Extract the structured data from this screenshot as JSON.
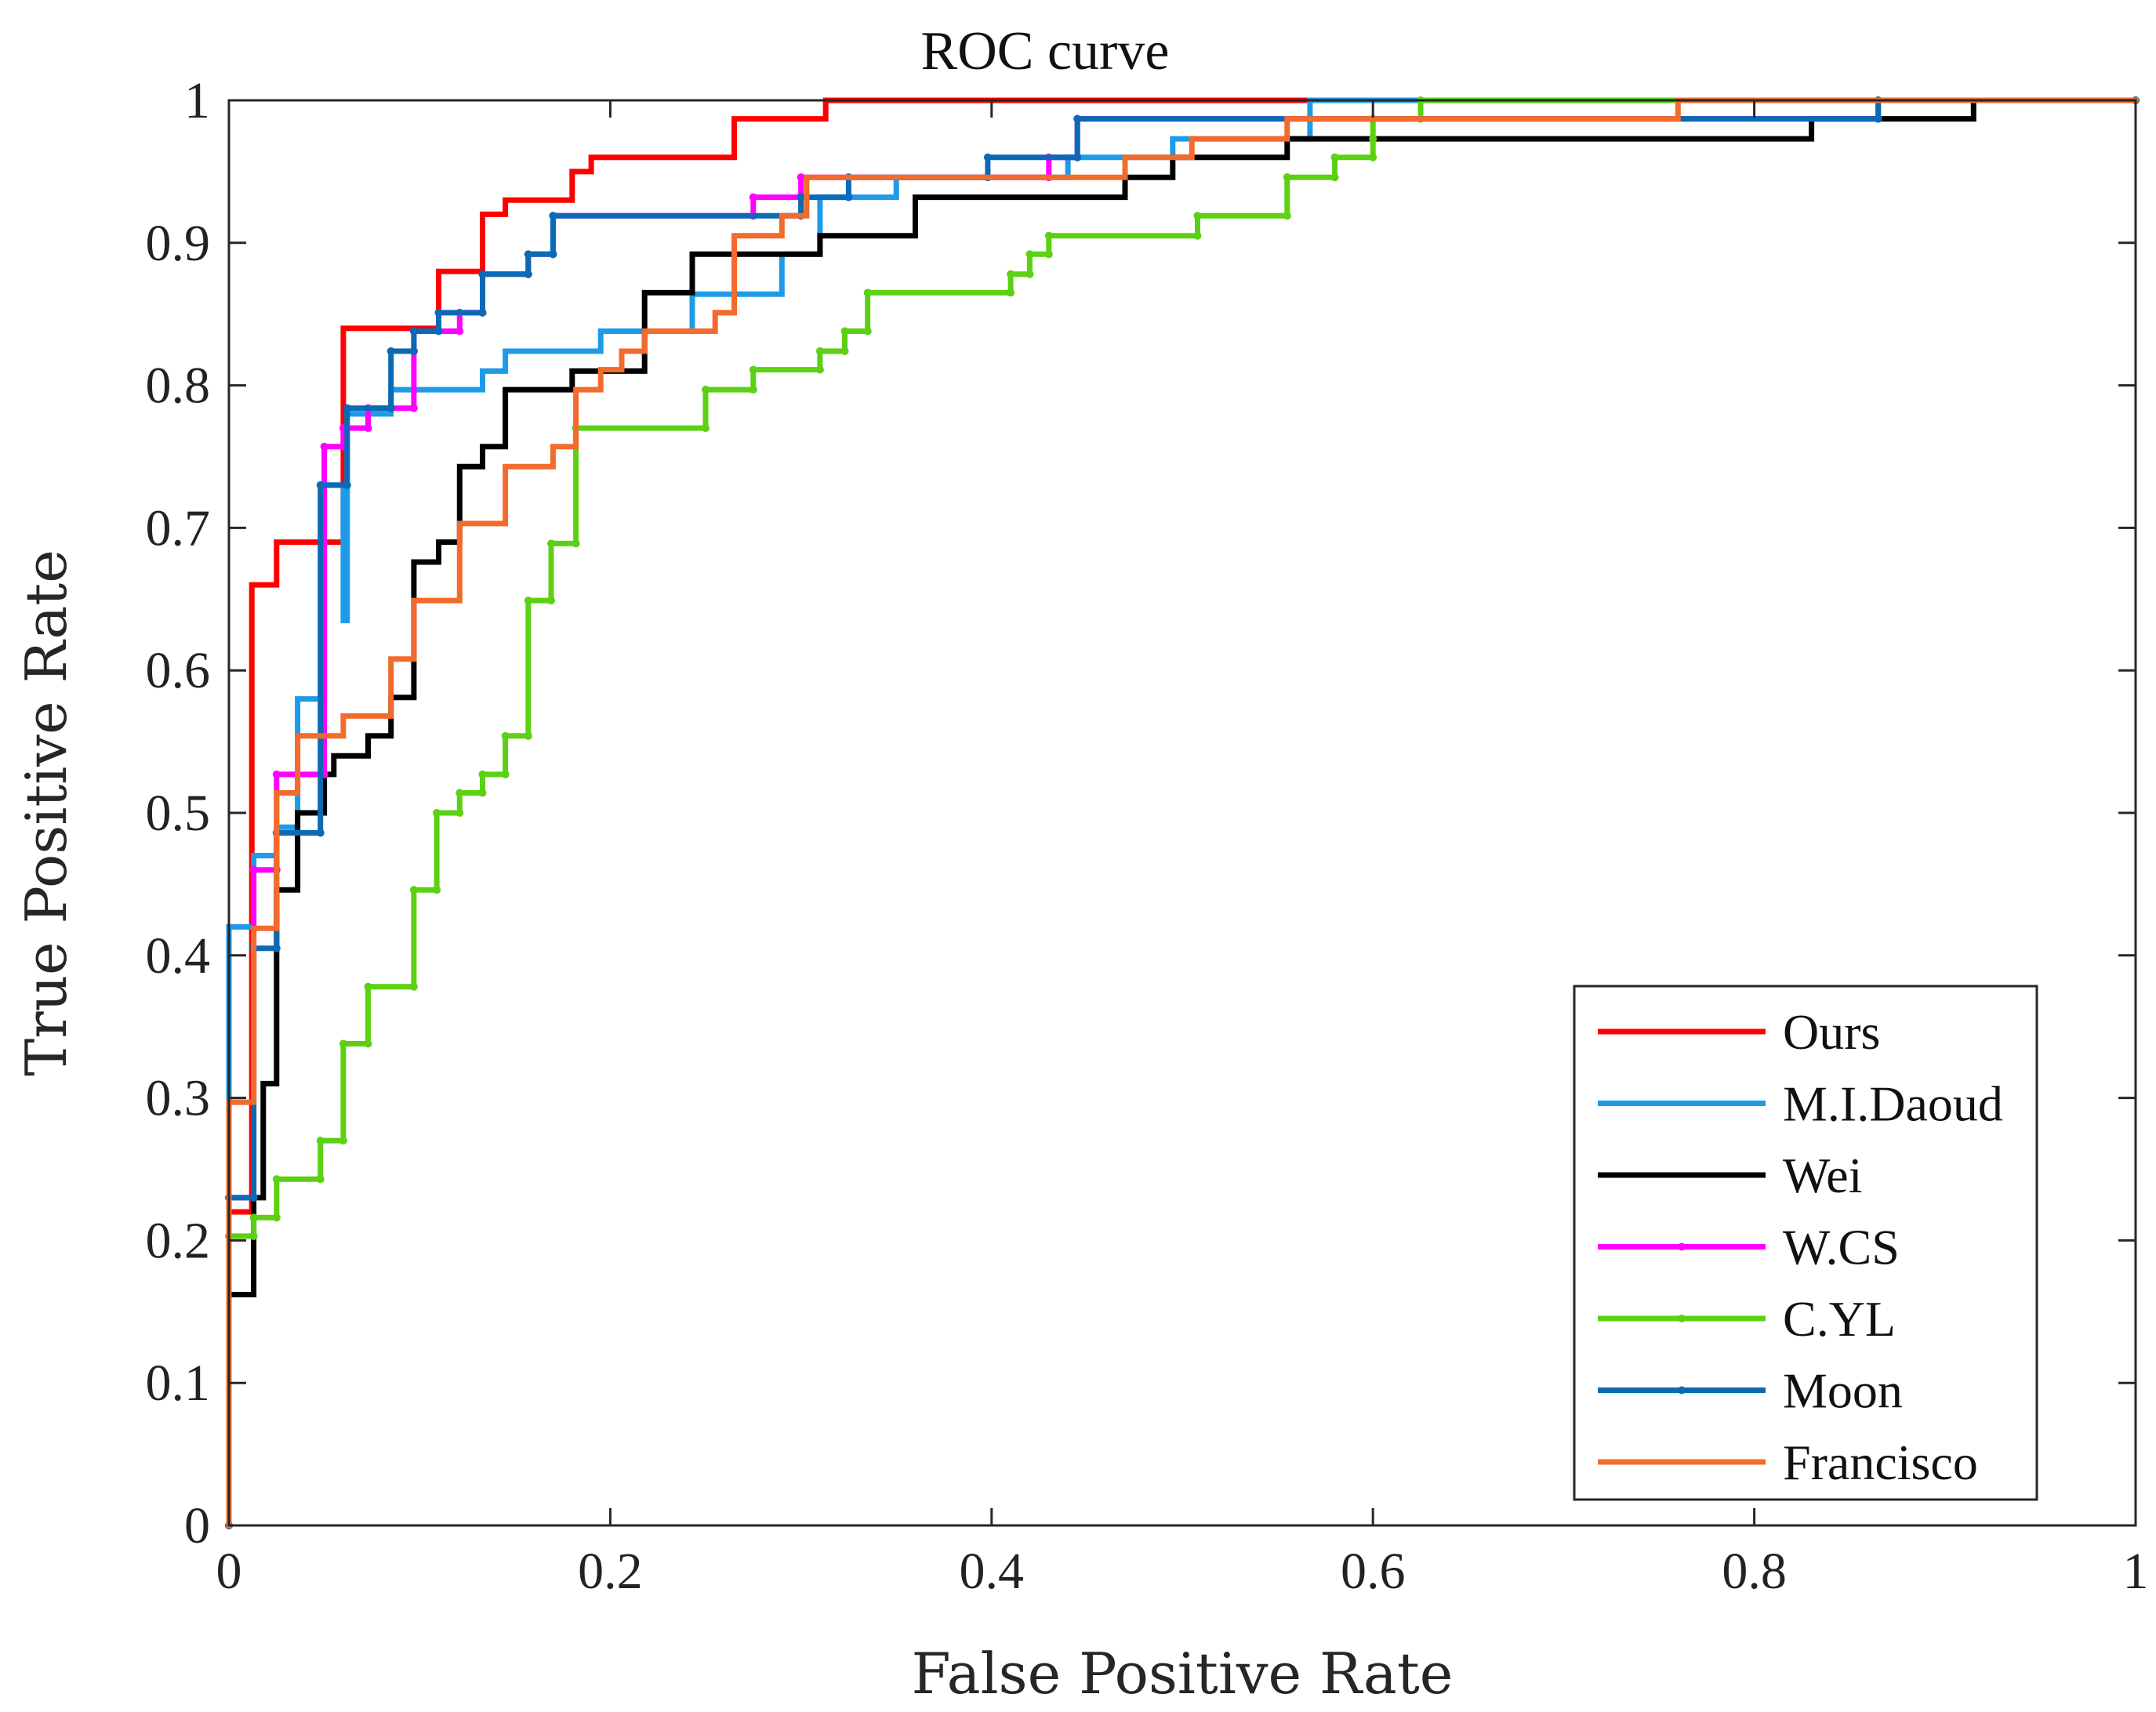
{
  "chart_data": {
    "type": "line",
    "title": "ROC curve",
    "xlabel": "False Positive Rate",
    "ylabel": "True Positive Rate",
    "xlim": [
      0,
      1
    ],
    "ylim": [
      0,
      1
    ],
    "xticks": [
      "0",
      "0.2",
      "0.4",
      "0.6",
      "0.8",
      "1"
    ],
    "yticks": [
      "0",
      "0.1",
      "0.2",
      "0.3",
      "0.4",
      "0.5",
      "0.6",
      "0.7",
      "0.8",
      "0.9",
      "1"
    ],
    "grid": false,
    "legend_position": "bottom-right",
    "series": [
      {
        "name": "Ours",
        "color": "#ff0000",
        "points": [
          [
            0,
            0
          ],
          [
            0,
            0.22
          ],
          [
            0.012,
            0.22
          ],
          [
            0.012,
            0.66
          ],
          [
            0.025,
            0.66
          ],
          [
            0.025,
            0.69
          ],
          [
            0.06,
            0.69
          ],
          [
            0.06,
            0.84
          ],
          [
            0.11,
            0.84
          ],
          [
            0.11,
            0.88
          ],
          [
            0.133,
            0.88
          ],
          [
            0.133,
            0.92
          ],
          [
            0.145,
            0.92
          ],
          [
            0.145,
            0.93
          ],
          [
            0.18,
            0.93
          ],
          [
            0.18,
            0.95
          ],
          [
            0.19,
            0.95
          ],
          [
            0.19,
            0.96
          ],
          [
            0.265,
            0.96
          ],
          [
            0.265,
            0.987
          ],
          [
            0.313,
            0.987
          ],
          [
            0.313,
            1
          ],
          [
            1,
            1
          ]
        ]
      },
      {
        "name": "M.I.Daoud",
        "color": "#1e9be8",
        "points": [
          [
            0,
            0
          ],
          [
            0,
            0.3
          ],
          [
            0,
            0.42
          ],
          [
            0.013,
            0.42
          ],
          [
            0.013,
            0.47
          ],
          [
            0.025,
            0.47
          ],
          [
            0.025,
            0.49
          ],
          [
            0.036,
            0.49
          ],
          [
            0.036,
            0.58
          ],
          [
            0.05,
            0.58
          ],
          [
            0.05,
            0.73
          ],
          [
            0.06,
            0.73
          ],
          [
            0.06,
            0.635
          ],
          [
            0.062,
            0.635
          ],
          [
            0.062,
            0.78
          ],
          [
            0.085,
            0.78
          ],
          [
            0.085,
            0.797
          ],
          [
            0.133,
            0.797
          ],
          [
            0.133,
            0.81
          ],
          [
            0.145,
            0.81
          ],
          [
            0.145,
            0.824
          ],
          [
            0.195,
            0.824
          ],
          [
            0.195,
            0.838
          ],
          [
            0.243,
            0.838
          ],
          [
            0.243,
            0.864
          ],
          [
            0.29,
            0.864
          ],
          [
            0.29,
            0.892
          ],
          [
            0.31,
            0.892
          ],
          [
            0.31,
            0.932
          ],
          [
            0.35,
            0.932
          ],
          [
            0.35,
            0.946
          ],
          [
            0.44,
            0.946
          ],
          [
            0.44,
            0.96
          ],
          [
            0.495,
            0.96
          ],
          [
            0.495,
            0.973
          ],
          [
            0.567,
            0.973
          ],
          [
            0.567,
            1
          ],
          [
            1,
            1
          ]
        ]
      },
      {
        "name": "Wei",
        "color": "#000000",
        "points": [
          [
            0,
            0
          ],
          [
            0,
            0.162
          ],
          [
            0.013,
            0.162
          ],
          [
            0.013,
            0.23
          ],
          [
            0.018,
            0.23
          ],
          [
            0.018,
            0.31
          ],
          [
            0.025,
            0.31
          ],
          [
            0.025,
            0.446
          ],
          [
            0.036,
            0.446
          ],
          [
            0.036,
            0.5
          ],
          [
            0.05,
            0.5
          ],
          [
            0.05,
            0.527
          ],
          [
            0.055,
            0.527
          ],
          [
            0.055,
            0.54
          ],
          [
            0.073,
            0.54
          ],
          [
            0.073,
            0.554
          ],
          [
            0.085,
            0.554
          ],
          [
            0.085,
            0.581
          ],
          [
            0.097,
            0.581
          ],
          [
            0.097,
            0.676
          ],
          [
            0.11,
            0.676
          ],
          [
            0.11,
            0.69
          ],
          [
            0.121,
            0.69
          ],
          [
            0.121,
            0.743
          ],
          [
            0.133,
            0.743
          ],
          [
            0.133,
            0.757
          ],
          [
            0.145,
            0.757
          ],
          [
            0.145,
            0.797
          ],
          [
            0.18,
            0.797
          ],
          [
            0.18,
            0.81
          ],
          [
            0.218,
            0.81
          ],
          [
            0.218,
            0.865
          ],
          [
            0.243,
            0.865
          ],
          [
            0.243,
            0.892
          ],
          [
            0.31,
            0.892
          ],
          [
            0.31,
            0.905
          ],
          [
            0.36,
            0.905
          ],
          [
            0.36,
            0.932
          ],
          [
            0.47,
            0.932
          ],
          [
            0.47,
            0.946
          ],
          [
            0.495,
            0.946
          ],
          [
            0.495,
            0.96
          ],
          [
            0.555,
            0.96
          ],
          [
            0.555,
            0.973
          ],
          [
            0.83,
            0.973
          ],
          [
            0.83,
            0.987
          ],
          [
            0.915,
            0.987
          ],
          [
            0.915,
            1
          ],
          [
            1,
            1
          ]
        ]
      },
      {
        "name": "W.CS",
        "color": "#ff00ff",
        "points": [
          [
            0,
            0
          ],
          [
            0,
            0.23
          ],
          [
            0.013,
            0.23
          ],
          [
            0.013,
            0.46
          ],
          [
            0.025,
            0.46
          ],
          [
            0.025,
            0.527
          ],
          [
            0.05,
            0.527
          ],
          [
            0.05,
            0.757
          ],
          [
            0.06,
            0.757
          ],
          [
            0.06,
            0.77
          ],
          [
            0.073,
            0.77
          ],
          [
            0.073,
            0.784
          ],
          [
            0.097,
            0.784
          ],
          [
            0.097,
            0.838
          ],
          [
            0.121,
            0.838
          ],
          [
            0.121,
            0.851
          ],
          [
            0.133,
            0.851
          ],
          [
            0.133,
            0.878
          ],
          [
            0.157,
            0.878
          ],
          [
            0.157,
            0.892
          ],
          [
            0.17,
            0.892
          ],
          [
            0.17,
            0.919
          ],
          [
            0.275,
            0.919
          ],
          [
            0.275,
            0.932
          ],
          [
            0.3,
            0.932
          ],
          [
            0.3,
            0.946
          ],
          [
            0.43,
            0.946
          ],
          [
            0.43,
            0.96
          ],
          [
            0.445,
            0.96
          ],
          [
            0.445,
            0.987
          ],
          [
            0.865,
            0.987
          ],
          [
            0.865,
            1
          ],
          [
            1,
            1
          ]
        ]
      },
      {
        "name": "C.YL",
        "color": "#5cd113",
        "points": [
          [
            0,
            0
          ],
          [
            0,
            0.203
          ],
          [
            0.013,
            0.203
          ],
          [
            0.013,
            0.216
          ],
          [
            0.025,
            0.216
          ],
          [
            0.025,
            0.243
          ],
          [
            0.048,
            0.243
          ],
          [
            0.048,
            0.27
          ],
          [
            0.06,
            0.27
          ],
          [
            0.06,
            0.338
          ],
          [
            0.073,
            0.338
          ],
          [
            0.073,
            0.378
          ],
          [
            0.097,
            0.378
          ],
          [
            0.097,
            0.446
          ],
          [
            0.109,
            0.446
          ],
          [
            0.109,
            0.5
          ],
          [
            0.121,
            0.5
          ],
          [
            0.121,
            0.514
          ],
          [
            0.133,
            0.514
          ],
          [
            0.133,
            0.527
          ],
          [
            0.145,
            0.527
          ],
          [
            0.145,
            0.554
          ],
          [
            0.157,
            0.554
          ],
          [
            0.157,
            0.649
          ],
          [
            0.169,
            0.649
          ],
          [
            0.169,
            0.689
          ],
          [
            0.182,
            0.689
          ],
          [
            0.182,
            0.77
          ],
          [
            0.25,
            0.77
          ],
          [
            0.25,
            0.797
          ],
          [
            0.275,
            0.797
          ],
          [
            0.275,
            0.811
          ],
          [
            0.31,
            0.811
          ],
          [
            0.31,
            0.824
          ],
          [
            0.323,
            0.824
          ],
          [
            0.323,
            0.838
          ],
          [
            0.335,
            0.838
          ],
          [
            0.335,
            0.865
          ],
          [
            0.41,
            0.865
          ],
          [
            0.41,
            0.878
          ],
          [
            0.42,
            0.878
          ],
          [
            0.42,
            0.892
          ],
          [
            0.43,
            0.892
          ],
          [
            0.43,
            0.905
          ],
          [
            0.508,
            0.905
          ],
          [
            0.508,
            0.919
          ],
          [
            0.555,
            0.919
          ],
          [
            0.555,
            0.946
          ],
          [
            0.58,
            0.946
          ],
          [
            0.58,
            0.96
          ],
          [
            0.6,
            0.96
          ],
          [
            0.6,
            0.973
          ],
          [
            0.6,
            0.987
          ],
          [
            0.625,
            0.987
          ],
          [
            0.625,
            1
          ],
          [
            1,
            1
          ]
        ]
      },
      {
        "name": "Moon",
        "color": "#0a6ab5",
        "points": [
          [
            0,
            0
          ],
          [
            0,
            0.23
          ],
          [
            0.013,
            0.23
          ],
          [
            0.013,
            0.405
          ],
          [
            0.025,
            0.405
          ],
          [
            0.025,
            0.486
          ],
          [
            0.048,
            0.486
          ],
          [
            0.048,
            0.73
          ],
          [
            0.062,
            0.73
          ],
          [
            0.062,
            0.784
          ],
          [
            0.085,
            0.784
          ],
          [
            0.085,
            0.824
          ],
          [
            0.097,
            0.824
          ],
          [
            0.097,
            0.838
          ],
          [
            0.11,
            0.838
          ],
          [
            0.11,
            0.851
          ],
          [
            0.133,
            0.851
          ],
          [
            0.133,
            0.878
          ],
          [
            0.157,
            0.878
          ],
          [
            0.157,
            0.892
          ],
          [
            0.17,
            0.892
          ],
          [
            0.17,
            0.919
          ],
          [
            0.3,
            0.919
          ],
          [
            0.3,
            0.932
          ],
          [
            0.325,
            0.932
          ],
          [
            0.325,
            0.946
          ],
          [
            0.398,
            0.946
          ],
          [
            0.398,
            0.96
          ],
          [
            0.445,
            0.96
          ],
          [
            0.445,
            0.987
          ],
          [
            0.865,
            0.987
          ],
          [
            0.865,
            1
          ],
          [
            1,
            1
          ]
        ]
      },
      {
        "name": "Francisco",
        "color": "#f26b2c",
        "points": [
          [
            0,
            0
          ],
          [
            0,
            0.297
          ],
          [
            0.013,
            0.297
          ],
          [
            0.013,
            0.419
          ],
          [
            0.025,
            0.419
          ],
          [
            0.025,
            0.514
          ],
          [
            0.036,
            0.514
          ],
          [
            0.036,
            0.554
          ],
          [
            0.06,
            0.554
          ],
          [
            0.06,
            0.568
          ],
          [
            0.085,
            0.568
          ],
          [
            0.085,
            0.608
          ],
          [
            0.097,
            0.608
          ],
          [
            0.097,
            0.649
          ],
          [
            0.121,
            0.649
          ],
          [
            0.121,
            0.703
          ],
          [
            0.145,
            0.703
          ],
          [
            0.145,
            0.743
          ],
          [
            0.17,
            0.743
          ],
          [
            0.17,
            0.757
          ],
          [
            0.182,
            0.757
          ],
          [
            0.182,
            0.797
          ],
          [
            0.195,
            0.797
          ],
          [
            0.195,
            0.811
          ],
          [
            0.206,
            0.811
          ],
          [
            0.206,
            0.824
          ],
          [
            0.218,
            0.824
          ],
          [
            0.218,
            0.838
          ],
          [
            0.255,
            0.838
          ],
          [
            0.255,
            0.851
          ],
          [
            0.265,
            0.851
          ],
          [
            0.265,
            0.905
          ],
          [
            0.29,
            0.905
          ],
          [
            0.29,
            0.919
          ],
          [
            0.303,
            0.919
          ],
          [
            0.303,
            0.946
          ],
          [
            0.47,
            0.946
          ],
          [
            0.47,
            0.96
          ],
          [
            0.505,
            0.96
          ],
          [
            0.505,
            0.973
          ],
          [
            0.555,
            0.973
          ],
          [
            0.555,
            0.987
          ],
          [
            0.76,
            0.987
          ],
          [
            0.76,
            1
          ],
          [
            1,
            1
          ]
        ]
      }
    ]
  }
}
